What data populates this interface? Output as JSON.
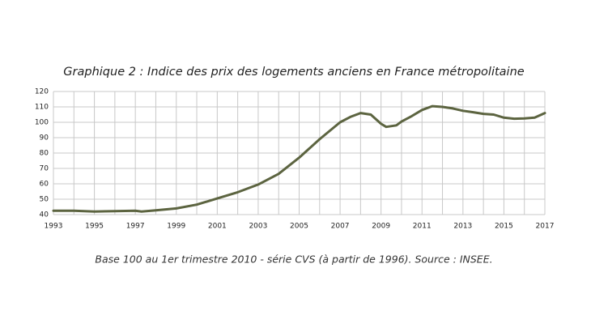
{
  "chart_data": {
    "type": "line",
    "title": "Graphique 2 : Indice des prix des logements anciens  en France métropolitaine",
    "caption": "Base 100 au 1er trimestre 2010 - série CVS (à partir de 1996). Source : INSEE.",
    "series": [
      {
        "name": "Indice",
        "color": "#5c6440",
        "x": [
          1993,
          1994,
          1995,
          1996,
          1997,
          1997.3,
          1998,
          1999,
          2000,
          2001,
          2002,
          2003,
          2004,
          2005,
          2006,
          2007,
          2007.5,
          2008,
          2008.5,
          2009,
          2009.25,
          2009.75,
          2010,
          2010.5,
          2011,
          2011.5,
          2012,
          2012.5,
          2013,
          2013.5,
          2014,
          2014.5,
          2015,
          2015.5,
          2016,
          2016.5,
          2017
        ],
        "values": [
          42.5,
          42.5,
          42,
          42.2,
          42.5,
          42,
          42.8,
          44,
          46.5,
          50.5,
          54.5,
          59.5,
          66.5,
          77,
          89,
          100,
          103.5,
          106,
          105,
          99,
          97,
          98,
          100.5,
          104,
          108,
          110.5,
          110,
          109,
          107.5,
          106.5,
          105.5,
          105,
          103,
          102.3,
          102.5,
          103,
          106
        ]
      }
    ],
    "xlim": [
      1993,
      2017
    ],
    "xticks": [
      1993,
      1995,
      1997,
      1999,
      2001,
      2003,
      2005,
      2007,
      2009,
      2011,
      2013,
      2015,
      2017
    ],
    "x_minor_grid": [
      1994,
      1996,
      1998,
      2000,
      2002,
      2004,
      2006,
      2008,
      2010,
      2012,
      2014,
      2016
    ],
    "ylim": [
      40,
      120
    ],
    "yticks": [
      40,
      50,
      60,
      70,
      80,
      90,
      100,
      110,
      120
    ],
    "grid": true
  }
}
